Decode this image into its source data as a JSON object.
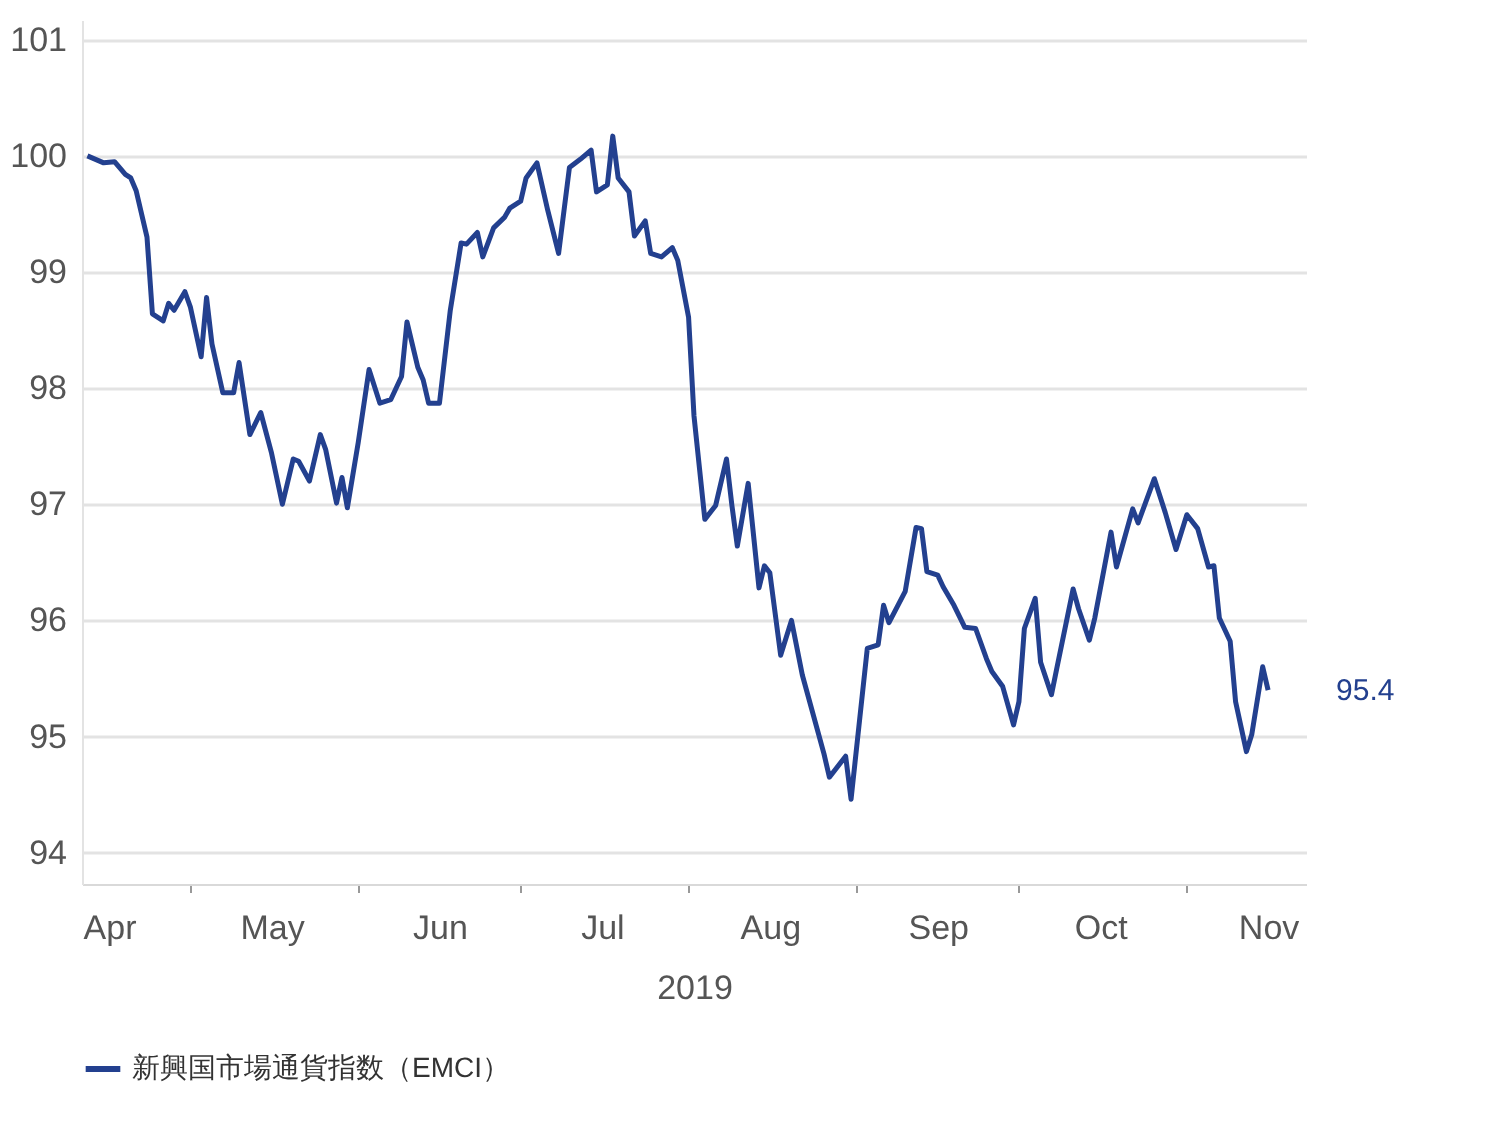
{
  "chart_data": {
    "type": "line",
    "xlabel": "2019",
    "x": [
      "2019-04-12",
      "2019-04-15",
      "2019-04-17",
      "2019-04-19",
      "2019-04-20",
      "2019-04-21",
      "2019-04-23",
      "2019-04-24",
      "2019-04-26",
      "2019-04-27",
      "2019-04-28",
      "2019-04-30",
      "2019-05-01",
      "2019-05-03",
      "2019-05-04",
      "2019-05-05",
      "2019-05-07",
      "2019-05-09",
      "2019-05-10",
      "2019-05-12",
      "2019-05-14",
      "2019-05-16",
      "2019-05-18",
      "2019-05-20",
      "2019-05-21",
      "2019-05-23",
      "2019-05-25",
      "2019-05-26",
      "2019-05-28",
      "2019-05-29",
      "2019-05-30",
      "2019-06-01",
      "2019-06-03",
      "2019-06-05",
      "2019-06-07",
      "2019-06-09",
      "2019-06-10",
      "2019-06-12",
      "2019-06-13",
      "2019-06-14",
      "2019-06-16",
      "2019-06-18",
      "2019-06-20",
      "2019-06-21",
      "2019-06-23",
      "2019-06-24",
      "2019-06-26",
      "2019-06-28",
      "2019-06-29",
      "2019-07-01",
      "2019-07-02",
      "2019-07-04",
      "2019-07-06",
      "2019-07-08",
      "2019-07-10",
      "2019-07-12",
      "2019-07-14",
      "2019-07-15",
      "2019-07-17",
      "2019-07-18",
      "2019-07-19",
      "2019-07-21",
      "2019-07-22",
      "2019-07-24",
      "2019-07-25",
      "2019-07-27",
      "2019-07-29",
      "2019-07-30",
      "2019-08-01",
      "2019-08-02",
      "2019-08-04",
      "2019-08-06",
      "2019-08-08",
      "2019-08-09",
      "2019-08-10",
      "2019-08-12",
      "2019-08-14",
      "2019-08-15",
      "2019-08-16",
      "2019-08-18",
      "2019-08-20",
      "2019-08-22",
      "2019-08-25",
      "2019-08-26",
      "2019-08-27",
      "2019-08-30",
      "2019-08-31",
      "2019-09-03",
      "2019-09-05",
      "2019-09-06",
      "2019-09-07",
      "2019-09-10",
      "2019-09-12",
      "2019-09-13",
      "2019-09-14",
      "2019-09-16",
      "2019-09-17",
      "2019-09-19",
      "2019-09-21",
      "2019-09-23",
      "2019-09-25",
      "2019-09-26",
      "2019-09-28",
      "2019-09-30",
      "2019-10-01",
      "2019-10-02",
      "2019-10-04",
      "2019-10-05",
      "2019-10-07",
      "2019-10-08",
      "2019-10-11",
      "2019-10-12",
      "2019-10-14",
      "2019-10-15",
      "2019-10-18",
      "2019-10-19",
      "2019-10-22",
      "2019-10-23",
      "2019-10-26",
      "2019-10-28",
      "2019-10-30",
      "2019-11-01",
      "2019-11-03",
      "2019-11-05",
      "2019-11-06",
      "2019-11-07",
      "2019-11-09",
      "2019-11-10",
      "2019-11-12",
      "2019-11-13",
      "2019-11-15",
      "2019-11-16"
    ],
    "series": [
      {
        "name": "新興国市場通貨指数（EMCI）",
        "color": "#23408f",
        "values": [
          100.0,
          99.94,
          99.95,
          99.84,
          99.81,
          99.7,
          99.3,
          98.64,
          98.58,
          98.73,
          98.67,
          98.83,
          98.7,
          98.27,
          98.78,
          98.38,
          97.96,
          97.96,
          98.22,
          97.6,
          97.79,
          97.44,
          97.0,
          97.39,
          97.37,
          97.2,
          97.6,
          97.47,
          97.01,
          97.23,
          96.97,
          97.53,
          98.16,
          97.87,
          97.9,
          98.1,
          98.57,
          98.18,
          98.07,
          97.87,
          97.87,
          98.67,
          99.25,
          99.24,
          99.34,
          99.13,
          99.38,
          99.47,
          99.55,
          99.61,
          99.81,
          99.94,
          99.53,
          99.16,
          99.9,
          99.97,
          100.05,
          99.69,
          99.75,
          100.17,
          99.81,
          99.69,
          99.31,
          99.44,
          99.16,
          99.13,
          99.21,
          99.1,
          98.61,
          97.76,
          96.87,
          96.99,
          97.39,
          96.99,
          96.64,
          97.18,
          96.28,
          96.47,
          96.41,
          95.7,
          96.0,
          95.53,
          95.02,
          94.85,
          94.65,
          94.83,
          94.46,
          95.76,
          95.79,
          96.13,
          95.98,
          96.25,
          96.8,
          96.79,
          96.42,
          96.39,
          96.29,
          96.13,
          95.94,
          95.93,
          95.67,
          95.56,
          95.43,
          95.1,
          95.3,
          95.93,
          96.19,
          95.64,
          95.36,
          95.59,
          96.27,
          96.1,
          95.83,
          96.02,
          96.76,
          96.46,
          96.96,
          96.84,
          97.22,
          96.93,
          96.61,
          96.91,
          96.79,
          96.46,
          96.47,
          96.02,
          95.82,
          95.3,
          94.87,
          95.02,
          95.6,
          95.4
        ]
      }
    ],
    "xlim": [
      "2019-04-11",
      "2019-11-23"
    ],
    "xticks": [
      {
        "value": "2019-04-16",
        "label": "Apr"
      },
      {
        "value": "2019-05-01",
        "label": null
      },
      {
        "value": "2019-05-16",
        "label": "May"
      },
      {
        "value": "2019-06-01",
        "label": null
      },
      {
        "value": "2019-06-16",
        "label": "Jun"
      },
      {
        "value": "2019-07-01",
        "label": null
      },
      {
        "value": "2019-07-16",
        "label": "Jul"
      },
      {
        "value": "2019-08-01",
        "label": null
      },
      {
        "value": "2019-08-16",
        "label": "Aug"
      },
      {
        "value": "2019-09-01",
        "label": null
      },
      {
        "value": "2019-09-16",
        "label": "Sep"
      },
      {
        "value": "2019-10-01",
        "label": null
      },
      {
        "value": "2019-10-16",
        "label": "Oct"
      },
      {
        "value": "2019-11-01",
        "label": null
      },
      {
        "value": "2019-11-16",
        "label": "Nov"
      }
    ],
    "ylim": [
      93.73,
      101.17
    ],
    "yticks": [
      94,
      95,
      96,
      97,
      98,
      99,
      100,
      101
    ],
    "annotations": [
      {
        "text": "95.4",
        "x": "2019-11-16",
        "y": 95.4
      }
    ],
    "grid": "y",
    "legend": "bottom left",
    "marker": "none",
    "line_style": "solid"
  }
}
